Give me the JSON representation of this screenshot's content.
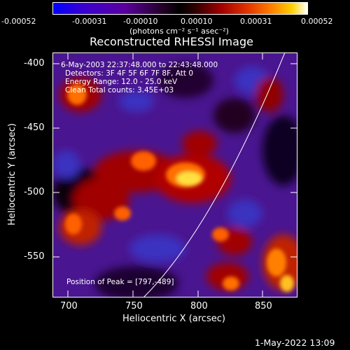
{
  "colorbar": {
    "tick_labels": [
      "-0.00052",
      "-0.00031",
      "-0.00010",
      "0.00010",
      "0.00031",
      "0.00052"
    ],
    "units_label": "(photons cm⁻² s⁻¹ asec⁻²)"
  },
  "image": {
    "title": "Reconstructed RHESSI Image",
    "x_label": "Heliocentric X (arcsec)",
    "y_label": "Heliocentric Y (arcsec)",
    "x_ticks": [
      "700",
      "750",
      "800",
      "850"
    ],
    "y_ticks": [
      "-400",
      "-450",
      "-500",
      "-550"
    ],
    "info_lines": [
      "6-May-2003 22:37:48.000 to 22:43:48.000",
      "Detectors: 3F 4F 5F 6F 7F 8F, Att 0",
      "Energy Range: 12.0 - 25.0 keV",
      "Clean     Total counts: 3.45E+03"
    ],
    "peak_label": "Position of Peak = [797,-489]"
  },
  "footer": {
    "timestamp": "1-May-2022 13:09"
  },
  "colors": {
    "background": "#000000",
    "text": "#ffffff"
  }
}
